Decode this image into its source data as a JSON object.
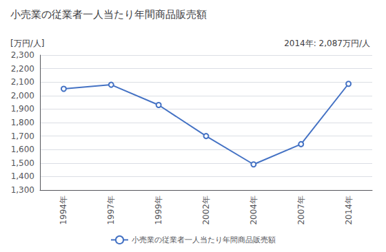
{
  "chart_data": {
    "type": "line",
    "title": "小売業の従業者一人当たり年間商品販売額",
    "ylabel": "[万円/人]",
    "annotation": "2014年: 2,087万円/人",
    "categories": [
      "1994年",
      "1997年",
      "1999年",
      "2002年",
      "2004年",
      "2007年",
      "2014年"
    ],
    "series": [
      {
        "name": "小売業の従業者一人当たり年間商品販売額",
        "color": "#4472C4",
        "marker": "circle",
        "values": [
          2050,
          2080,
          1930,
          1700,
          1490,
          1640,
          2087
        ]
      }
    ],
    "ylim": [
      1300,
      2300
    ],
    "yticks": [
      {
        "value": 1300,
        "label": "1,300"
      },
      {
        "value": 1400,
        "label": "1,400"
      },
      {
        "value": 1500,
        "label": "1,500"
      },
      {
        "value": 1600,
        "label": "1,600"
      },
      {
        "value": 1700,
        "label": "1,700"
      },
      {
        "value": 1800,
        "label": "1,800"
      },
      {
        "value": 1900,
        "label": "1,900"
      },
      {
        "value": 2000,
        "label": "2,000"
      },
      {
        "value": 2100,
        "label": "2,100"
      },
      {
        "value": 2200,
        "label": "2,200"
      },
      {
        "value": 2300,
        "label": "2,300"
      }
    ],
    "grid": true,
    "legend": "bottom"
  }
}
